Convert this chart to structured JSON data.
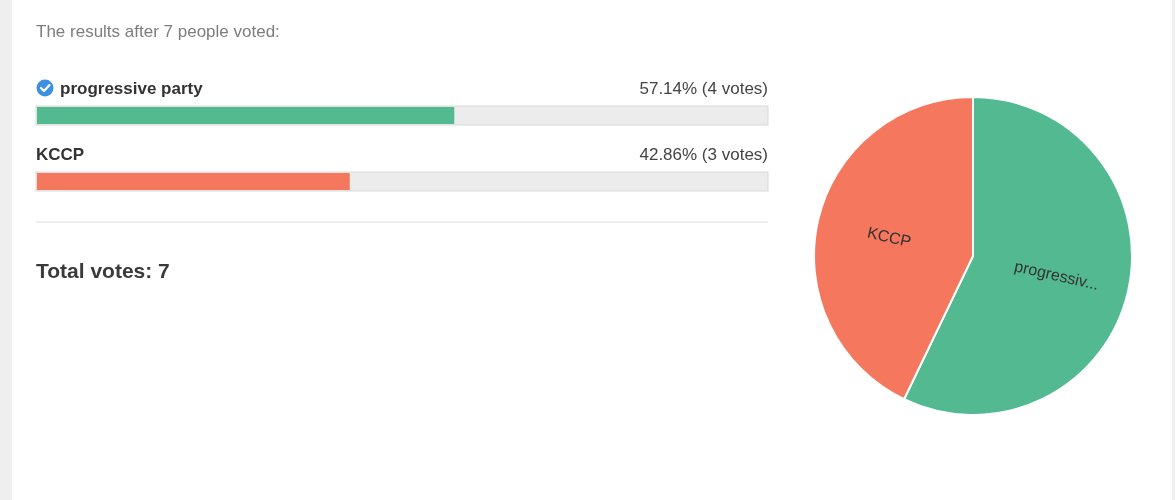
{
  "chart_data": [
    {
      "type": "bar",
      "orientation": "horizontal",
      "title": "The results after 7 people voted:",
      "categories": [
        "progressive party",
        "KCCP"
      ],
      "values": [
        57.14,
        42.86
      ],
      "colors": [
        "#52b991",
        "#f5775e"
      ],
      "xlim": [
        0,
        100
      ],
      "tick_labels": "y",
      "value_labels": [
        "57.14% (4 votes)",
        "42.86% (3 votes)"
      ],
      "annotations": [
        "Total votes: 7"
      ]
    },
    {
      "type": "pie",
      "categories": [
        "progressiv...",
        "KCCP"
      ],
      "values": [
        57.14,
        42.86
      ],
      "colors": [
        "#52b991",
        "#f5775e"
      ]
    }
  ]
}
